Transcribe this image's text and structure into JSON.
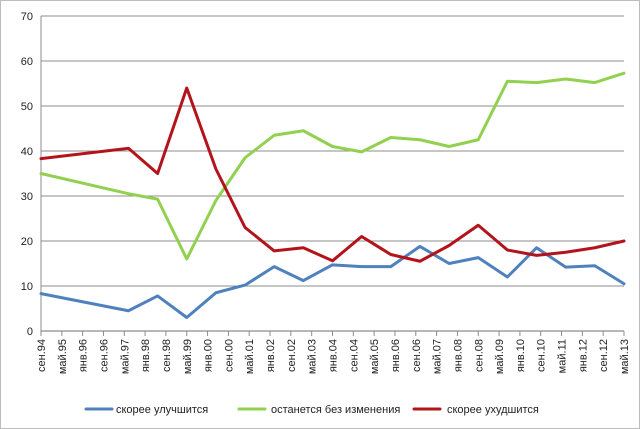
{
  "chart_data": {
    "type": "line",
    "title": "",
    "xlabel": "",
    "ylabel": "",
    "ylim": [
      0,
      70
    ],
    "yticks": [
      0,
      10,
      20,
      30,
      40,
      50,
      60,
      70
    ],
    "grid": "horizontal",
    "legend_position": "bottom",
    "categories": [
      "сен.94",
      "май.95",
      "янв.96",
      "сен.96",
      "май.97",
      "янв.98",
      "сен.98",
      "май.99",
      "янв.00",
      "сен.00",
      "май.01",
      "янв.02",
      "сен.02",
      "май.03",
      "янв.04",
      "сен.04",
      "май.05",
      "янв.06",
      "сен.06",
      "май.07",
      "янв.08",
      "сен.08",
      "май.09",
      "янв.10",
      "сен.10",
      "май.11",
      "янв.12",
      "сен.12",
      "май.13"
    ],
    "series": [
      {
        "name": "скорее улучшится",
        "color": "#4f81bd",
        "points": [
          [
            0,
            8.3
          ],
          [
            3,
            4.5
          ],
          [
            4,
            7.8
          ],
          [
            5,
            3.0
          ],
          [
            6,
            8.5
          ],
          [
            7,
            10.2
          ],
          [
            8,
            14.3
          ],
          [
            9,
            11.2
          ],
          [
            10,
            14.7
          ],
          [
            11,
            14.3
          ],
          [
            12,
            14.3
          ],
          [
            13,
            18.8
          ],
          [
            14,
            15.0
          ],
          [
            15,
            16.3
          ],
          [
            16,
            12.0
          ],
          [
            17,
            18.5
          ],
          [
            18,
            14.2
          ],
          [
            19,
            14.5
          ],
          [
            20,
            10.5
          ]
        ]
      },
      {
        "name": "останется без изменения",
        "color": "#92d050",
        "points": [
          [
            0,
            35.0
          ],
          [
            3,
            30.5
          ],
          [
            4,
            29.3
          ],
          [
            5,
            16.0
          ],
          [
            6,
            29.0
          ],
          [
            7,
            38.5
          ],
          [
            8,
            43.5
          ],
          [
            9,
            44.5
          ],
          [
            10,
            41.0
          ],
          [
            11,
            39.8
          ],
          [
            12,
            43.0
          ],
          [
            13,
            42.5
          ],
          [
            14,
            41.0
          ],
          [
            15,
            42.5
          ],
          [
            16,
            55.5
          ],
          [
            17,
            55.2
          ],
          [
            18,
            56.0
          ],
          [
            19,
            55.2
          ],
          [
            20,
            57.3
          ]
        ]
      },
      {
        "name": "скорее ухудшится",
        "color": "#b3141b",
        "points": [
          [
            0,
            38.3
          ],
          [
            3,
            40.6
          ],
          [
            4,
            35.0
          ],
          [
            5,
            54.0
          ],
          [
            6,
            36.0
          ],
          [
            7,
            23.0
          ],
          [
            8,
            17.8
          ],
          [
            9,
            18.5
          ],
          [
            10,
            15.6
          ],
          [
            11,
            21.0
          ],
          [
            12,
            17.0
          ],
          [
            13,
            15.5
          ],
          [
            14,
            19.0
          ],
          [
            15,
            23.5
          ],
          [
            16,
            18.0
          ],
          [
            17,
            16.8
          ],
          [
            18,
            17.5
          ],
          [
            19,
            18.5
          ],
          [
            20,
            20.0
          ]
        ]
      }
    ]
  }
}
